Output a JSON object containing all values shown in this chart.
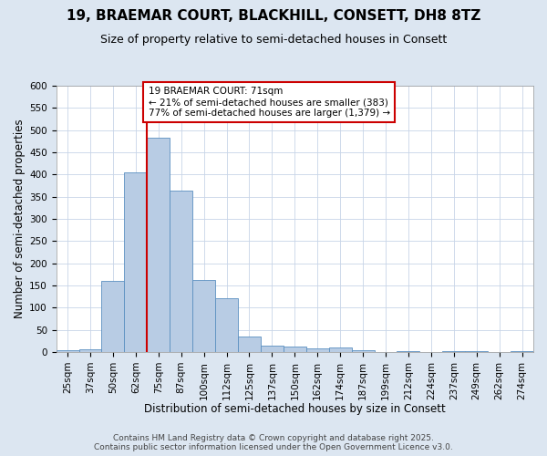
{
  "title_line1": "19, BRAEMAR COURT, BLACKHILL, CONSETT, DH8 8TZ",
  "title_line2": "Size of property relative to semi-detached houses in Consett",
  "xlabel": "Distribution of semi-detached houses by size in Consett",
  "ylabel": "Number of semi-detached properties",
  "categories": [
    "25sqm",
    "37sqm",
    "50sqm",
    "62sqm",
    "75sqm",
    "87sqm",
    "100sqm",
    "112sqm",
    "125sqm",
    "137sqm",
    "150sqm",
    "162sqm",
    "174sqm",
    "187sqm",
    "199sqm",
    "212sqm",
    "224sqm",
    "237sqm",
    "249sqm",
    "262sqm",
    "274sqm"
  ],
  "values": [
    5,
    7,
    160,
    405,
    483,
    363,
    163,
    122,
    35,
    15,
    12,
    9,
    10,
    5,
    0,
    2,
    0,
    3,
    1,
    0,
    2
  ],
  "bar_color": "#b8cce4",
  "bar_edge_color": "#5a8fc0",
  "vline_color": "#cc0000",
  "vline_index": 3.5,
  "annotation_text": "19 BRAEMAR COURT: 71sqm\n← 21% of semi-detached houses are smaller (383)\n77% of semi-detached houses are larger (1,379) →",
  "annotation_box_color": "#cc0000",
  "annotation_bg": "#ffffff",
  "ylim": [
    0,
    600
  ],
  "yticks": [
    0,
    50,
    100,
    150,
    200,
    250,
    300,
    350,
    400,
    450,
    500,
    550,
    600
  ],
  "grid_color": "#c8d4e8",
  "figure_bg_color": "#dce6f1",
  "plot_bg_color": "#ffffff",
  "footer_line1": "Contains HM Land Registry data © Crown copyright and database right 2025.",
  "footer_line2": "Contains public sector information licensed under the Open Government Licence v3.0.",
  "title_fontsize": 11,
  "subtitle_fontsize": 9,
  "axis_label_fontsize": 8.5,
  "tick_fontsize": 7.5,
  "annotation_fontsize": 7.5,
  "footer_fontsize": 6.5
}
